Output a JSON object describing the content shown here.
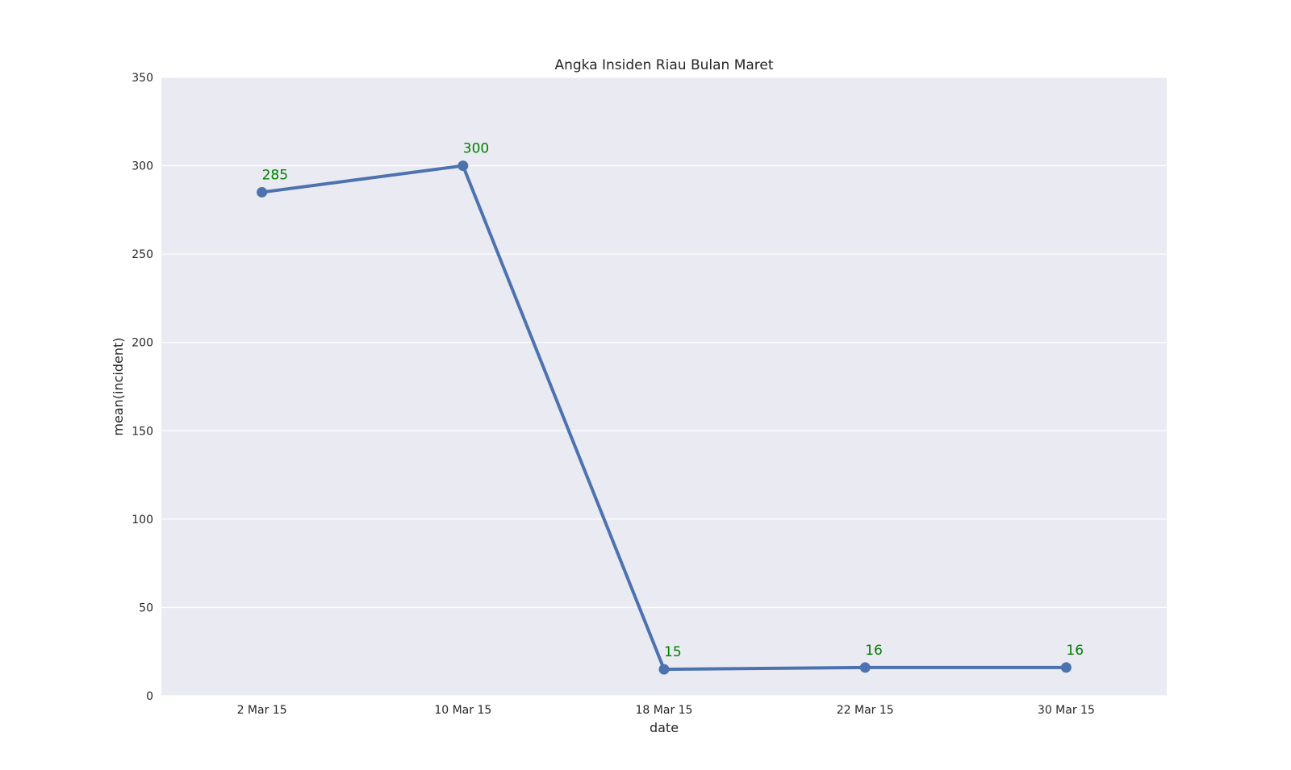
{
  "chart_data": {
    "type": "line",
    "title": "Angka Insiden Riau Bulan Maret",
    "xlabel": "date",
    "ylabel": "mean(incident)",
    "categories": [
      "2 Mar 15",
      "10 Mar 15",
      "18 Mar 15",
      "22 Mar 15",
      "30 Mar 15"
    ],
    "series": [
      {
        "values": [
          285,
          300,
          15,
          16,
          16
        ]
      }
    ],
    "data_labels": [
      "285",
      "300",
      "15",
      "16",
      "16"
    ],
    "ylim": [
      0,
      350
    ],
    "yticks": [
      0,
      50,
      100,
      150,
      200,
      250,
      300,
      350
    ],
    "ytick_labels": [
      "0",
      "50",
      "100",
      "150",
      "200",
      "250",
      "300",
      "350"
    ],
    "grid": true,
    "colors": {
      "plot_background": "#eaeaf2",
      "gridline": "#ffffff",
      "line": "#4c72b0",
      "data_label": "#008000"
    }
  }
}
